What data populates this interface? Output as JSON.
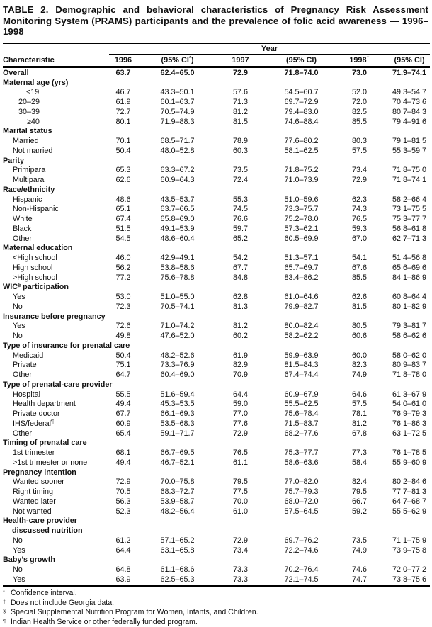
{
  "title": "TABLE 2. Demographic and behavioral characteristics of Pregnancy Risk Assessment Monitoring System (PRAMS) participants and the prevalence of folic acid awareness — 1996–1998",
  "table": {
    "year_header": "Year",
    "columns": [
      "Characteristic",
      "1996",
      "(95% CI*)",
      "1997",
      "(95% CI)",
      "1998†",
      "(95% CI)"
    ],
    "rows": [
      {
        "type": "data",
        "bold": true,
        "indent": 0,
        "label": "Overall",
        "values": [
          "63.7",
          "62.4–65.0",
          "72.9",
          "71.8–74.0",
          "73.0",
          "71.9–74.1"
        ]
      },
      {
        "type": "section",
        "label": "Maternal age (yrs)"
      },
      {
        "type": "data",
        "indent": 33,
        "label": "<19",
        "values": [
          "46.7",
          "43.3–50.1",
          "57.6",
          "54.5–60.7",
          "52.0",
          "49.3–54.7"
        ]
      },
      {
        "type": "data",
        "indent": 22,
        "label": "20–29",
        "values": [
          "61.9",
          "60.1–63.7",
          "71.3",
          "69.7–72.9",
          "72.0",
          "70.4–73.6"
        ]
      },
      {
        "type": "data",
        "indent": 22,
        "label": "30–39",
        "values": [
          "72.7",
          "70.5–74.9",
          "81.2",
          "79.4–83.0",
          "82.5",
          "80.7–84.3"
        ]
      },
      {
        "type": "data",
        "indent": 34,
        "label": "≥40",
        "values": [
          "80.1",
          "71.9–88.3",
          "81.5",
          "74.6–88.4",
          "85.5",
          "79.4–91.6"
        ]
      },
      {
        "type": "section",
        "label": "Marital status"
      },
      {
        "type": "data",
        "indent": 14,
        "label": "Married",
        "values": [
          "70.1",
          "68.5–71.7",
          "78.9",
          "77.6–80.2",
          "80.3",
          "79.1–81.5"
        ]
      },
      {
        "type": "data",
        "indent": 14,
        "label": "Not married",
        "values": [
          "50.4",
          "48.0–52.8",
          "60.3",
          "58.1–62.5",
          "57.5",
          "55.3–59.7"
        ]
      },
      {
        "type": "section",
        "label": "Parity"
      },
      {
        "type": "data",
        "indent": 14,
        "label": "Primipara",
        "values": [
          "65.3",
          "63.3–67.2",
          "73.5",
          "71.8–75.2",
          "73.4",
          "71.8–75.0"
        ]
      },
      {
        "type": "data",
        "indent": 14,
        "label": "Multipara",
        "values": [
          "62.6",
          "60.9–64.3",
          "72.4",
          "71.0–73.9",
          "72.9",
          "71.8–74.1"
        ]
      },
      {
        "type": "section",
        "label": "Race/ethnicity"
      },
      {
        "type": "data",
        "indent": 14,
        "label": "Hispanic",
        "values": [
          "48.6",
          "43.5–53.7",
          "55.3",
          "51.0–59.6",
          "62.3",
          "58.2–66.4"
        ]
      },
      {
        "type": "data",
        "indent": 14,
        "label": "Non-Hispanic",
        "values": [
          "65.1",
          "63.7–66.5",
          "74.5",
          "73.3–75.7",
          "74.3",
          "73.1–75.5"
        ]
      },
      {
        "type": "data",
        "indent": 14,
        "label": "White",
        "values": [
          "67.4",
          "65.8–69.0",
          "76.6",
          "75.2–78.0",
          "76.5",
          "75.3–77.7"
        ]
      },
      {
        "type": "data",
        "indent": 14,
        "label": "Black",
        "values": [
          "51.5",
          "49.1–53.9",
          "59.7",
          "57.3–62.1",
          "59.3",
          "56.8–61.8"
        ]
      },
      {
        "type": "data",
        "indent": 14,
        "label": "Other",
        "values": [
          "54.5",
          "48.6–60.4",
          "65.2",
          "60.5–69.9",
          "67.0",
          "62.7–71.3"
        ]
      },
      {
        "type": "section",
        "label": "Maternal education"
      },
      {
        "type": "data",
        "indent": 14,
        "label": "<High school",
        "values": [
          "46.0",
          "42.9–49.1",
          "54.2",
          "51.3–57.1",
          "54.1",
          "51.4–56.8"
        ]
      },
      {
        "type": "data",
        "indent": 14,
        "label": "High school",
        "values": [
          "56.2",
          "53.8–58.6",
          "67.7",
          "65.7–69.7",
          "67.6",
          "65.6–69.6"
        ]
      },
      {
        "type": "data",
        "indent": 14,
        "label": ">High school",
        "values": [
          "77.2",
          "75.6–78.8",
          "84.8",
          "83.4–86.2",
          "85.5",
          "84.1–86.9"
        ]
      },
      {
        "type": "section",
        "label": "WIC§ participation"
      },
      {
        "type": "data",
        "indent": 14,
        "label": "Yes",
        "values": [
          "53.0",
          "51.0–55.0",
          "62.8",
          "61.0–64.6",
          "62.6",
          "60.8–64.4"
        ]
      },
      {
        "type": "data",
        "indent": 14,
        "label": "No",
        "values": [
          "72.3",
          "70.5–74.1",
          "81.3",
          "79.9–82.7",
          "81.5",
          "80.1–82.9"
        ]
      },
      {
        "type": "section",
        "label": "Insurance before pregnancy"
      },
      {
        "type": "data",
        "indent": 14,
        "label": "Yes",
        "values": [
          "72.6",
          "71.0–74.2",
          "81.2",
          "80.0–82.4",
          "80.5",
          "79.3–81.7"
        ]
      },
      {
        "type": "data",
        "indent": 14,
        "label": "No",
        "values": [
          "49.8",
          "47.6–52.0",
          "60.2",
          "58.2–62.2",
          "60.6",
          "58.6–62.6"
        ]
      },
      {
        "type": "section",
        "label": "Type of insurance for prenatal care"
      },
      {
        "type": "data",
        "indent": 14,
        "label": "Medicaid",
        "values": [
          "50.4",
          "48.2–52.6",
          "61.9",
          "59.9–63.9",
          "60.0",
          "58.0–62.0"
        ]
      },
      {
        "type": "data",
        "indent": 14,
        "label": "Private",
        "values": [
          "75.1",
          "73.3–76.9",
          "82.9",
          "81.5–84.3",
          "82.3",
          "80.9–83.7"
        ]
      },
      {
        "type": "data",
        "indent": 14,
        "label": "Other",
        "values": [
          "64.7",
          "60.4–69.0",
          "70.9",
          "67.4–74.4",
          "74.9",
          "71.8–78.0"
        ]
      },
      {
        "type": "section",
        "label": "Type of prenatal-care provider"
      },
      {
        "type": "data",
        "indent": 14,
        "label": "Hospital",
        "values": [
          "55.5",
          "51.6–59.4",
          "64.4",
          "60.9–67.9",
          "64.6",
          "61.3–67.9"
        ]
      },
      {
        "type": "data",
        "indent": 14,
        "label": "Health department",
        "values": [
          "49.4",
          "45.3–53.5",
          "59.0",
          "55.5–62.5",
          "57.5",
          "54.0–61.0"
        ]
      },
      {
        "type": "data",
        "indent": 14,
        "label": "Private doctor",
        "values": [
          "67.7",
          "66.1–69.3",
          "77.0",
          "75.6–78.4",
          "78.1",
          "76.9–79.3"
        ]
      },
      {
        "type": "data",
        "indent": 14,
        "label": "IHS/federal¶",
        "values": [
          "60.9",
          "53.5–68.3",
          "77.6",
          "71.5–83.7",
          "81.2",
          "76.1–86.3"
        ]
      },
      {
        "type": "data",
        "indent": 14,
        "label": "Other",
        "values": [
          "65.4",
          "59.1–71.7",
          "72.9",
          "68.2–77.6",
          "67.8",
          "63.1–72.5"
        ]
      },
      {
        "type": "section",
        "label": "Timing of prenatal care"
      },
      {
        "type": "data",
        "indent": 14,
        "label": "1st trimester",
        "values": [
          "68.1",
          "66.7–69.5",
          "76.5",
          "75.3–77.7",
          "77.3",
          "76.1–78.5"
        ]
      },
      {
        "type": "data",
        "indent": 14,
        "label": ">1st trimester or none",
        "values": [
          "49.4",
          "46.7–52.1",
          "61.1",
          "58.6–63.6",
          "58.4",
          "55.9–60.9"
        ]
      },
      {
        "type": "section",
        "label": "Pregnancy intention"
      },
      {
        "type": "data",
        "indent": 14,
        "label": "Wanted sooner",
        "values": [
          "72.9",
          "70.0–75.8",
          "79.5",
          "77.0–82.0",
          "82.4",
          "80.2–84.6"
        ]
      },
      {
        "type": "data",
        "indent": 14,
        "label": "Right timing",
        "values": [
          "70.5",
          "68.3–72.7",
          "77.5",
          "75.7–79.3",
          "79.5",
          "77.7–81.3"
        ]
      },
      {
        "type": "data",
        "indent": 14,
        "label": "Wanted later",
        "values": [
          "56.3",
          "53.9–58.7",
          "70.0",
          "68.0–72.0",
          "66.7",
          "64.7–68.7"
        ]
      },
      {
        "type": "data",
        "indent": 14,
        "label": "Not wanted",
        "values": [
          "52.3",
          "48.2–56.4",
          "61.0",
          "57.5–64.5",
          "59.2",
          "55.5–62.9"
        ]
      },
      {
        "type": "section",
        "label": "Health-care provider"
      },
      {
        "type": "section",
        "indent": 13,
        "label": "discussed nutrition"
      },
      {
        "type": "data",
        "indent": 14,
        "label": "No",
        "values": [
          "61.2",
          "57.1–65.2",
          "72.9",
          "69.7–76.2",
          "73.5",
          "71.1–75.9"
        ]
      },
      {
        "type": "data",
        "indent": 14,
        "label": "Yes",
        "values": [
          "64.4",
          "63.1–65.8",
          "73.4",
          "72.2–74.6",
          "74.9",
          "73.9–75.8"
        ]
      },
      {
        "type": "section",
        "label": "Baby’s growth"
      },
      {
        "type": "data",
        "indent": 14,
        "label": "No",
        "values": [
          "64.8",
          "61.1–68.6",
          "73.3",
          "70.2–76.4",
          "74.6",
          "72.0–77.2"
        ]
      },
      {
        "type": "data",
        "indent": 14,
        "label": "Yes",
        "values": [
          "63.9",
          "62.5–65.3",
          "73.3",
          "72.1–74.5",
          "74.7",
          "73.8–75.6"
        ]
      }
    ]
  },
  "footnotes": [
    {
      "marker": "*",
      "text": "Confidence interval."
    },
    {
      "marker": "†",
      "text": "Does not include Georgia data."
    },
    {
      "marker": "§",
      "text": "Special Supplemental Nutrition Program for Women, Infants, and Children."
    },
    {
      "marker": "¶",
      "text": "Indian Health Service or other federally funded program."
    }
  ]
}
